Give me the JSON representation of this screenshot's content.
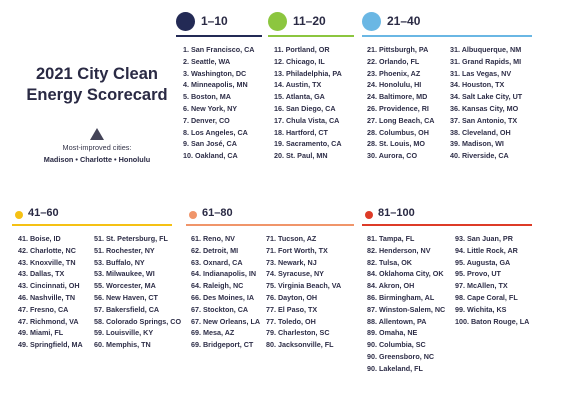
{
  "title_line1": "2021 City Clean",
  "title_line2": "Energy Scorecard",
  "improved_label": "Most-improved cities:",
  "improved_cities": "Madison • Charlotte • Honolulu",
  "tiers": [
    {
      "range": "1–10",
      "color": "#232a55",
      "columns": [
        [
          "1. San Francisco, CA",
          "2. Seattle, WA",
          "3. Washington, DC",
          "4. Minneapolis, MN",
          "5. Boston, MA",
          "6. New York, NY",
          "7. Denver, CO",
          "8. Los Angeles, CA",
          "9. San José, CA",
          "10. Oakland, CA"
        ]
      ]
    },
    {
      "range": "11–20",
      "color": "#8cc63f",
      "columns": [
        [
          "11. Portland, OR",
          "12. Chicago, IL",
          "13. Philadelphia, PA",
          "14. Austin, TX",
          "15. Atlanta, GA",
          "16. San Diego, CA",
          "17. Chula Vista, CA",
          "18. Hartford, CT",
          "19. Sacramento, CA",
          "20. St. Paul, MN"
        ]
      ]
    },
    {
      "range": "21–40",
      "color": "#6ab7e4",
      "columns": [
        [
          "21. Pittsburgh, PA",
          "22. Orlando, FL",
          "23. Phoenix, AZ",
          "24. Honolulu, HI",
          "24. Baltimore, MD",
          "26. Providence, RI",
          "27. Long Beach, CA",
          "28. Columbus, OH",
          "28. St. Louis, MO",
          "30. Aurora, CO"
        ],
        [
          "31. Albuquerque, NM",
          "31. Grand Rapids, MI",
          "31. Las Vegas, NV",
          "34. Houston, TX",
          "34. Salt Lake City, UT",
          "36. Kansas City, MO",
          "37. San Antonio, TX",
          "38. Cleveland, OH",
          "39. Madison, WI",
          "40. Riverside, CA"
        ]
      ]
    },
    {
      "range": "41–60",
      "color": "#f5c114",
      "columns": [
        [
          "41. Boise, ID",
          "42. Charlotte, NC",
          "43. Knoxville, TN",
          "43. Dallas, TX",
          "43. Cincinnati, OH",
          "46. Nashville, TN",
          "47. Fresno, CA",
          "47. Richmond, VA",
          "49. Miami, FL",
          "49. Springfield, MA"
        ],
        [
          "51. St. Petersburg, FL",
          "51. Rochester, NY",
          "53. Buffalo, NY",
          "53. Milwaukee, WI",
          "55. Worcester, MA",
          "56. New Haven, CT",
          "57. Bakersfield, CA",
          "58. Colorado Springs, CO",
          "59. Louisville, KY",
          "60. Memphis, TN"
        ]
      ]
    },
    {
      "range": "61–80",
      "color": "#f0956a",
      "columns": [
        [
          "61. Reno, NV",
          "62. Detroit, MI",
          "63. Oxnard, CA",
          "64. Indianapolis, IN",
          "64. Raleigh, NC",
          "66. Des Moines, IA",
          "67. Stockton, CA",
          "67. New Orleans, LA",
          "69. Mesa, AZ",
          "69. Bridgeport, CT"
        ],
        [
          "71. Tucson, AZ",
          "71. Fort Worth, TX",
          "73. Newark, NJ",
          "74. Syracuse, NY",
          "75. Virginia Beach, VA",
          "76. Dayton, OH",
          "77. El Paso, TX",
          "77. Toledo, OH",
          "79. Charleston, SC",
          "80. Jacksonville, FL"
        ]
      ]
    },
    {
      "range": "81–100",
      "color": "#dd3b27",
      "columns": [
        [
          "81. Tampa, FL",
          "82. Henderson, NV",
          "82. Tulsa, OK",
          "84. Oklahoma City, OK",
          "84. Akron, OH",
          "86. Birmingham, AL",
          "87. Winston-Salem, NC",
          "88. Allentown, PA",
          "89. Omaha, NE",
          "90. Columbia, SC",
          "90. Greensboro, NC",
          "90. Lakeland, FL"
        ],
        [
          "93. San Juan, PR",
          "94. Little Rock, AR",
          "95. Augusta, GA",
          "95. Provo, UT",
          "97. McAllen, TX",
          "98. Cape Coral, FL",
          "99. Wichita, KS",
          "100. Baton Rouge, LA"
        ]
      ]
    }
  ]
}
